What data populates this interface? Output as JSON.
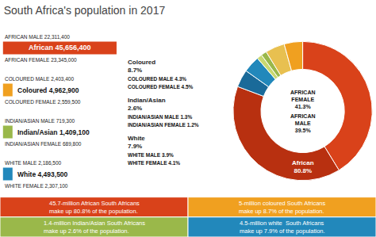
{
  "chart_data": {
    "type": "donut",
    "title": "South Africa's population in 2017",
    "values": [
      41.3,
      39.5,
      4.1,
      3.9,
      1.2,
      1.3,
      4.5,
      4.3
    ],
    "colors": [
      "#d9421a",
      "#b83010",
      "#1a6a99",
      "#2288bb",
      "#c8d870",
      "#9ab84a",
      "#e8c050",
      "#f0a020"
    ],
    "labels": [
      "AFRICAN\nFEMALE\n41.3%",
      "AFRICAN\nMALE\n39.5%",
      "WHITE FEMALE 4.1%",
      "WHITE MALE 3.9%",
      "INDIAN/ASIAN FEMALE 1.2%",
      "INDIAN/ASIAN MALE 1.3%",
      "COLOURED FEMALE 4.5%",
      "COLOURED MALE 4.3%"
    ],
    "group_labels": [
      "Coloured\n8.7%",
      "Indian/Asian\n2.6%",
      "White\n7.9%",
      "African\n80.8%"
    ],
    "groups": [
      {
        "name": "African 45,656,400",
        "color": "#d9421a",
        "male_label": "AFRICAN MALE 22,311,400",
        "female_label": "AFRICAN FEMALE 23,345,000"
      },
      {
        "name": "Coloured 4,962,900",
        "color": "#f0a020",
        "male_label": "COLOURED MALE 2,403,400",
        "female_label": "COLOURED FEMALE 2,559,500"
      },
      {
        "name": "Indian/Asian 1,409,100",
        "color": "#9ab84a",
        "male_label": "INDIAN/ASIAN MALE 719,300",
        "female_label": "INDIAN/ASIAN FEMALE 689,800"
      },
      {
        "name": "White 4,493,500",
        "color": "#2288bb",
        "male_label": "WHITE MALE 2,186,500",
        "female_label": "WHITE FEMALE 2,307,100"
      }
    ],
    "footnotes": [
      {
        "text": "45.7-million African South Africans\nmake up 80.8% of the population.",
        "color": "#d9421a"
      },
      {
        "text": "5-million coloured South Africans\nmake up 8.7% of the population.",
        "color": "#f0a020"
      },
      {
        "text": "1.4-million Indian/Asian South Africans\nmake up 2.6% of the population.",
        "color": "#9ab84a"
      },
      {
        "text": "4.5-million white  South Africans\nmake up 7.9% of the population.",
        "color": "#2288bb"
      }
    ]
  }
}
